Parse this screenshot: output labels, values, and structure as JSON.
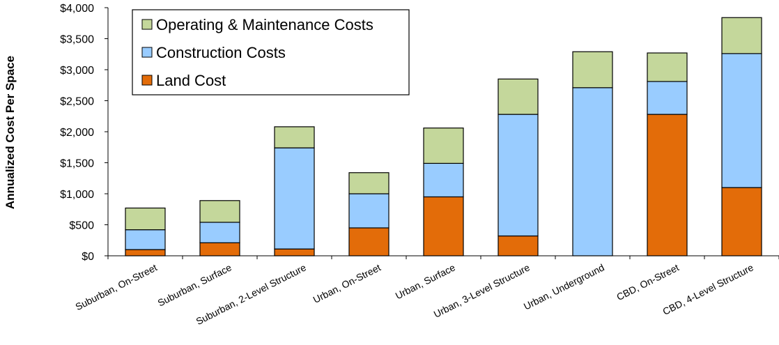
{
  "chart_data": {
    "type": "bar",
    "stacked": true,
    "ylabel": "Annualized Cost Per Space",
    "xlabel": "",
    "ylim": [
      0,
      4000
    ],
    "yticks": [
      0,
      500,
      1000,
      1500,
      2000,
      2500,
      3000,
      3500,
      4000
    ],
    "ytick_labels": [
      "$0",
      "$500",
      "$1,000",
      "$1,500",
      "$2,000",
      "$2,500",
      "$3,000",
      "$3,500",
      "$4,000"
    ],
    "categories": [
      "Suburban, On-Street",
      "Suburban, Surface",
      "Suburban, 2-Level Structure",
      "Urban, On-Street",
      "Urban, Surface",
      "Urban, 3-Level Structure",
      "Urban, Underground",
      "CBD, On-Street",
      "CBD, 4-Level Structure"
    ],
    "series": [
      {
        "name": "Land Cost",
        "color": "#e36c09",
        "values": [
          100,
          210,
          110,
          450,
          950,
          320,
          0,
          2280,
          1100
        ]
      },
      {
        "name": "Construction Costs",
        "color": "#99ccff",
        "values": [
          320,
          330,
          1630,
          550,
          540,
          1960,
          2710,
          530,
          2160
        ]
      },
      {
        "name": "Operating & Maintenance Costs",
        "color": "#c4d79b",
        "values": [
          350,
          350,
          340,
          340,
          570,
          570,
          580,
          460,
          580
        ]
      }
    ],
    "legend": {
      "position": "top-left",
      "order": [
        "Operating & Maintenance Costs",
        "Construction Costs",
        "Land Cost"
      ]
    },
    "grid": false
  }
}
